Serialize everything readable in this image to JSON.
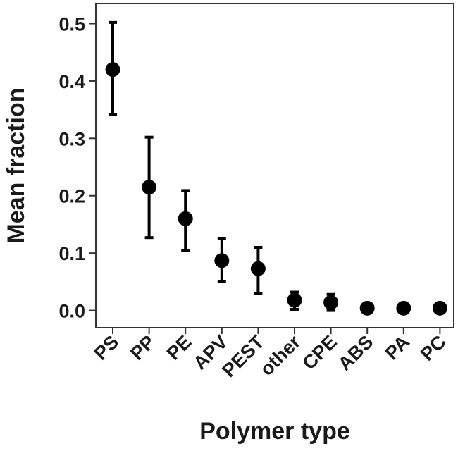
{
  "chart_data": {
    "type": "scatter",
    "title": "",
    "xlabel": "Polymer type",
    "ylabel": "Mean fraction",
    "categories": [
      "PS",
      "PP",
      "PE",
      "APV",
      "PEST",
      "other",
      "CPE",
      "ABS",
      "PA",
      "PC"
    ],
    "values": [
      0.42,
      0.215,
      0.16,
      0.087,
      0.073,
      0.018,
      0.014,
      0.004,
      0.004,
      0.004
    ],
    "error_low": [
      0.342,
      0.127,
      0.105,
      0.05,
      0.03,
      0.002,
      0.0,
      0.0,
      0.0,
      0.0
    ],
    "error_high": [
      0.502,
      0.302,
      0.209,
      0.125,
      0.11,
      0.032,
      0.028,
      0.008,
      0.008,
      0.008
    ],
    "ylim": [
      -0.03,
      0.535
    ],
    "yticks": [
      0.0,
      0.1,
      0.2,
      0.3,
      0.4,
      0.5
    ],
    "ytick_labels": [
      "0.0",
      "0.1",
      "0.2",
      "0.3",
      "0.4",
      "0.5"
    ],
    "grid": false,
    "legend": "none",
    "marker_color": "#000000",
    "frame_color": "#333333"
  }
}
